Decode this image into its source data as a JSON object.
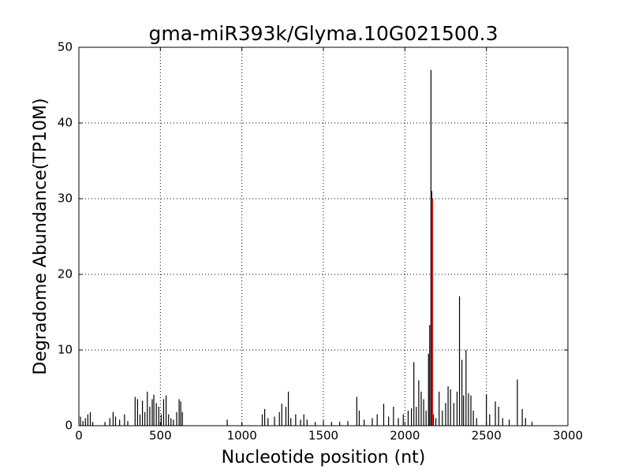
{
  "chart_data": {
    "type": "bar",
    "title": "gma-miR393k/Glyma.10G021500.3",
    "x_label": "Nucleotide position (nt)",
    "y_label": "Degradome Abundance(TP10M)",
    "xlim": [
      0,
      3000
    ],
    "ylim": [
      0,
      50
    ],
    "xticks": [
      0,
      500,
      1000,
      1500,
      2000,
      2500,
      3000
    ],
    "yticks": [
      0,
      10,
      20,
      30,
      40,
      50
    ],
    "grid": true,
    "series": [
      {
        "color": "#000000",
        "x": [
          10,
          25,
          40,
          55,
          70,
          85,
          160,
          190,
          210,
          225,
          250,
          280,
          300,
          345,
          360,
          375,
          390,
          405,
          420,
          435,
          450,
          460,
          475,
          490,
          505,
          520,
          535,
          550,
          565,
          580,
          600,
          615,
          625,
          635,
          910,
          1000,
          1125,
          1140,
          1160,
          1200,
          1230,
          1245,
          1270,
          1285,
          1300,
          1330,
          1360,
          1380,
          1400,
          1450,
          1500,
          1550,
          1600,
          1650,
          1705,
          1720,
          1750,
          1800,
          1830,
          1870,
          1900,
          1930,
          1960,
          1990,
          2020,
          2040,
          2055,
          2070,
          2085,
          2100,
          2115,
          2130,
          2145,
          2152,
          2160,
          2165,
          2175,
          2190,
          2210,
          2230,
          2250,
          2265,
          2280,
          2300,
          2320,
          2335,
          2350,
          2360,
          2375,
          2390,
          2405,
          2420,
          2440,
          2500,
          2520,
          2555,
          2575,
          2600,
          2640,
          2690,
          2720,
          2740,
          2780
        ],
        "values": [
          1.2,
          0.6,
          1.0,
          1.5,
          1.8,
          0.5,
          0.5,
          1.0,
          1.8,
          1.2,
          0.8,
          1.5,
          0.6,
          3.8,
          3.5,
          1.5,
          3.3,
          1.8,
          4.5,
          2.5,
          3.5,
          4.1,
          3.0,
          2.5,
          1.5,
          3.5,
          4.0,
          1.5,
          1.0,
          0.8,
          1.8,
          3.5,
          3.2,
          1.8,
          0.8,
          0.3,
          1.5,
          2.2,
          1.0,
          1.2,
          1.8,
          2.9,
          2.5,
          4.5,
          1.0,
          1.5,
          0.8,
          1.5,
          0.8,
          0.5,
          0.7,
          0.5,
          0.5,
          0.6,
          3.8,
          2.0,
          0.8,
          1.0,
          1.5,
          2.9,
          1.2,
          2.5,
          1.0,
          1.5,
          2.0,
          2.3,
          8.4,
          2.5,
          6.0,
          4.5,
          3.5,
          2.0,
          9.5,
          13.3,
          47.0,
          31.0,
          1.5,
          1.0,
          4.5,
          2.0,
          3.0,
          5.2,
          4.8,
          3.0,
          4.5,
          17.1,
          8.7,
          4.0,
          10.0,
          4.3,
          4.0,
          2.0,
          1.0,
          4.1,
          1.5,
          3.2,
          2.5,
          1.0,
          0.8,
          6.1,
          2.2,
          1.0,
          0.5
        ]
      },
      {
        "color": "#ff0000",
        "x": [
          2168
        ],
        "values": [
          30
        ]
      }
    ]
  }
}
